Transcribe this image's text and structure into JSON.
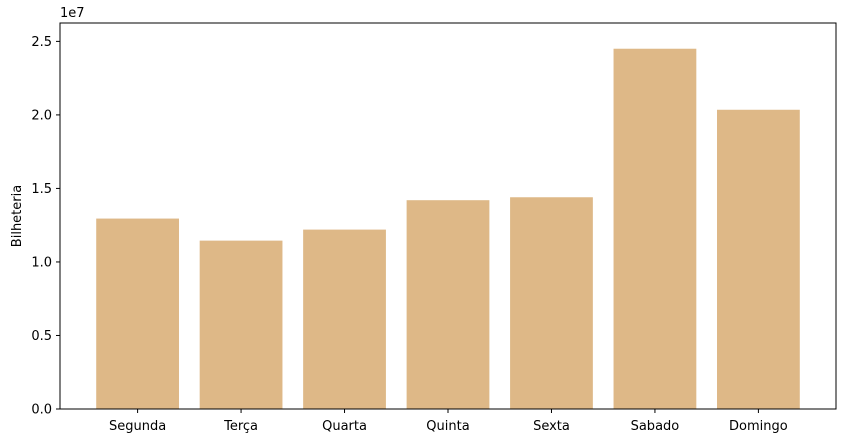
{
  "chart_data": {
    "type": "bar",
    "categories": [
      "Segunda",
      "Terça",
      "Quarta",
      "Quinta",
      "Sexta",
      "Sabado",
      "Domingo"
    ],
    "values": [
      12950000,
      11450000,
      12200000,
      14200000,
      14400000,
      24500000,
      20350000
    ],
    "xlabel": "",
    "ylabel": "Bilheteria",
    "y_offset_label": "1e7",
    "ylim": [
      0,
      26250000
    ],
    "yticks": [
      0,
      5000000,
      10000000,
      15000000,
      20000000,
      25000000
    ],
    "ytick_labels": [
      "0.0",
      "0.5",
      "1.0",
      "1.5",
      "2.0",
      "2.5"
    ],
    "bar_color": "#deb887",
    "grid": false
  }
}
